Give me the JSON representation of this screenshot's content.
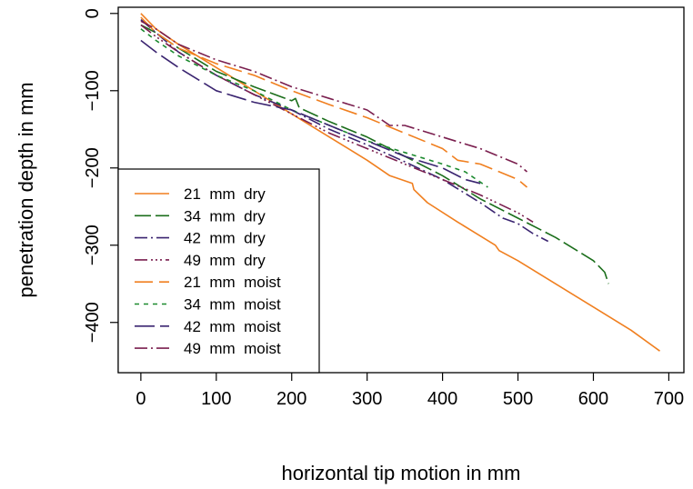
{
  "chart_data": {
    "type": "line",
    "title": "",
    "xlabel": "horizontal tip motion in mm",
    "ylabel": "penetration depth in mm",
    "xlim": [
      -30,
      720
    ],
    "ylim": [
      -465,
      8
    ],
    "xticks": [
      0,
      100,
      200,
      300,
      400,
      500,
      600,
      700
    ],
    "yticks": [
      0,
      -100,
      -200,
      -300,
      -400
    ],
    "xtick_labels": [
      "0",
      "100",
      "200",
      "300",
      "400",
      "500",
      "600",
      "700"
    ],
    "ytick_labels": [
      "0",
      "−100",
      "−200",
      "−300",
      "−400"
    ],
    "grid": false,
    "legend_position": "bottom-left",
    "series": [
      {
        "name": "21  mm  dry",
        "color": "#f07f1f",
        "dash": "solid",
        "x": [
          0,
          10,
          20,
          50,
          100,
          150,
          200,
          250,
          300,
          330,
          360,
          362,
          380,
          420,
          470,
          475,
          500,
          550,
          600,
          650,
          688
        ],
        "y": [
          0,
          -10,
          -20,
          -40,
          -70,
          -100,
          -130,
          -160,
          -190,
          -210,
          -220,
          -228,
          -245,
          -270,
          -300,
          -307,
          -320,
          -350,
          -380,
          -410,
          -437
        ]
      },
      {
        "name": "34  mm  dry",
        "color": "#1b6e1b",
        "dash": "18,5",
        "x": [
          0,
          20,
          50,
          100,
          150,
          200,
          205,
          210,
          250,
          300,
          350,
          400,
          450,
          500,
          550,
          600,
          615,
          620
        ],
        "y": [
          -15,
          -25,
          -45,
          -75,
          -95,
          -113,
          -110,
          -122,
          -140,
          -160,
          -185,
          -210,
          -240,
          -265,
          -290,
          -320,
          -335,
          -350
        ]
      },
      {
        "name": "42  mm  dry",
        "color": "#3a2470",
        "dash": "14,4,2,4",
        "x": [
          0,
          20,
          50,
          100,
          150,
          200,
          250,
          300,
          350,
          400,
          450,
          480,
          500,
          520,
          540
        ],
        "y": [
          -8,
          -25,
          -50,
          -80,
          -105,
          -125,
          -150,
          -170,
          -192,
          -215,
          -245,
          -265,
          -272,
          -285,
          -295
        ]
      },
      {
        "name": "49  mm  dry",
        "color": "#7a1e4e",
        "dash": "14,4,2,3,2,3,2,4",
        "x": [
          0,
          20,
          50,
          100,
          150,
          200,
          250,
          300,
          350,
          400,
          450,
          500,
          520
        ],
        "y": [
          -15,
          -30,
          -50,
          -80,
          -105,
          -130,
          -155,
          -175,
          -195,
          -215,
          -235,
          -258,
          -270
        ]
      },
      {
        "name": "21  mm  moist",
        "color": "#f07f1f",
        "dash": "20,7",
        "x": [
          0,
          20,
          50,
          100,
          150,
          200,
          250,
          300,
          350,
          400,
          420,
          450,
          500,
          512
        ],
        "y": [
          -5,
          -25,
          -45,
          -65,
          -80,
          -100,
          -118,
          -135,
          -155,
          -175,
          -190,
          -195,
          -215,
          -225
        ]
      },
      {
        "name": "34  mm  moist",
        "color": "#1b8a2e",
        "dash": "5,5",
        "x": [
          0,
          20,
          50,
          100,
          150,
          200,
          250,
          300,
          350,
          400,
          430,
          460
        ],
        "y": [
          -20,
          -35,
          -55,
          -80,
          -100,
          -125,
          -145,
          -165,
          -180,
          -195,
          -205,
          -225
        ]
      },
      {
        "name": "42  mm  moist",
        "color": "#3a2470",
        "dash": "22,6",
        "x": [
          0,
          20,
          50,
          100,
          150,
          200,
          250,
          300,
          350,
          400,
          430,
          450
        ],
        "y": [
          -35,
          -50,
          -70,
          -100,
          -115,
          -125,
          -145,
          -165,
          -185,
          -200,
          -215,
          -220
        ]
      },
      {
        "name": "49  mm  moist",
        "color": "#7a1e4e",
        "dash": "14,4,2,4",
        "x": [
          0,
          20,
          50,
          100,
          150,
          200,
          250,
          300,
          330,
          350,
          400,
          450,
          500,
          512
        ],
        "y": [
          -10,
          -20,
          -40,
          -60,
          -75,
          -95,
          -110,
          -125,
          -145,
          -145,
          -160,
          -175,
          -195,
          -205
        ]
      }
    ]
  }
}
